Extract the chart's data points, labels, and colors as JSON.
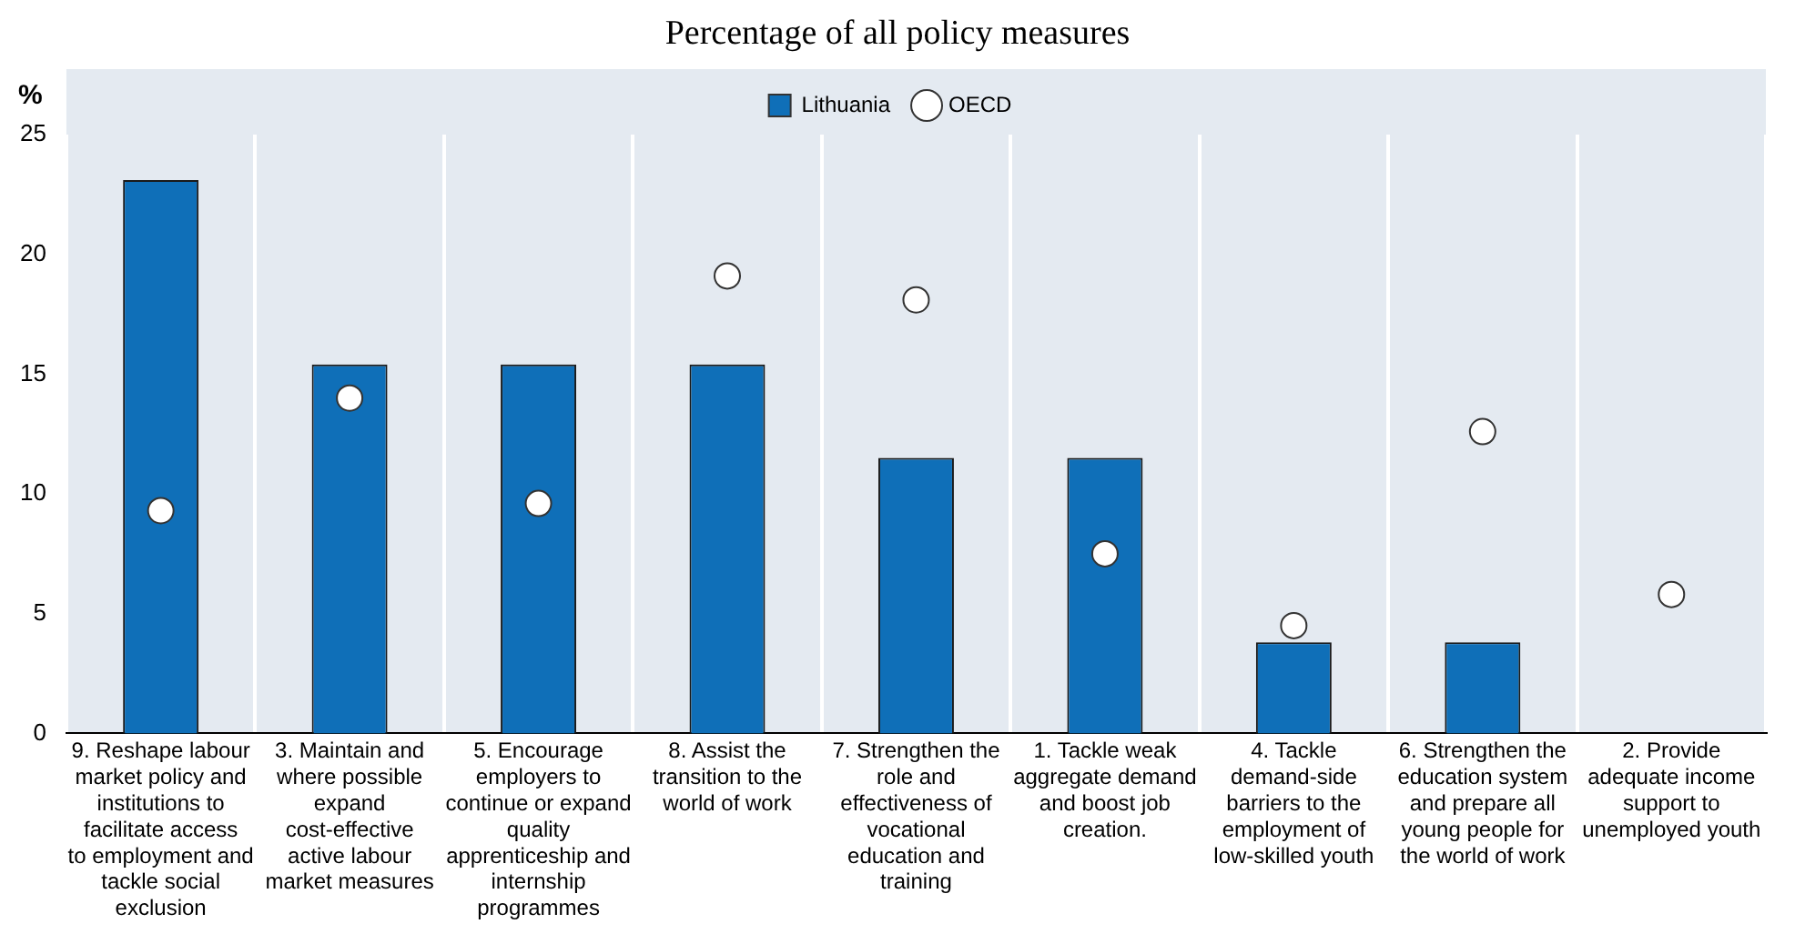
{
  "chart_data": {
    "type": "bar",
    "title": "Percentage of all policy measures",
    "ylabel": "%",
    "categories": [
      "9. Reshape labour market policy and institutions to facilitate access to employment and tackle social exclusion",
      "3. Maintain and where possible expand cost-effective active labour market measures",
      "5. Encourage employers to continue or expand quality apprenticeship and internship programmes",
      "8. Assist the transition to the world of work",
      "7. Strengthen the role and effectiveness of vocational education and training",
      "1. Tackle weak aggregate demand and boost job creation.",
      "4. Tackle demand-side barriers to the employment of low-skilled youth",
      "6. Strengthen the education system and prepare all young people for the world of work",
      "2. Provide adequate income support to unemployed youth"
    ],
    "series": [
      {
        "name": "Lithuania",
        "color": "#0f6fb8",
        "values": [
          23.1,
          15.4,
          15.4,
          15.4,
          11.5,
          11.5,
          3.8,
          3.8,
          0
        ]
      },
      {
        "name": "OECD",
        "type": "scatter",
        "color": "#ffffff",
        "marker": "circle",
        "values": [
          9.3,
          14.0,
          9.6,
          19.1,
          18.1,
          7.5,
          4.5,
          12.6,
          5.8
        ]
      }
    ],
    "ylim": [
      0,
      25
    ],
    "yticks": [
      0,
      5,
      10,
      15,
      20,
      25
    ],
    "grid": "x",
    "legend": "top"
  }
}
